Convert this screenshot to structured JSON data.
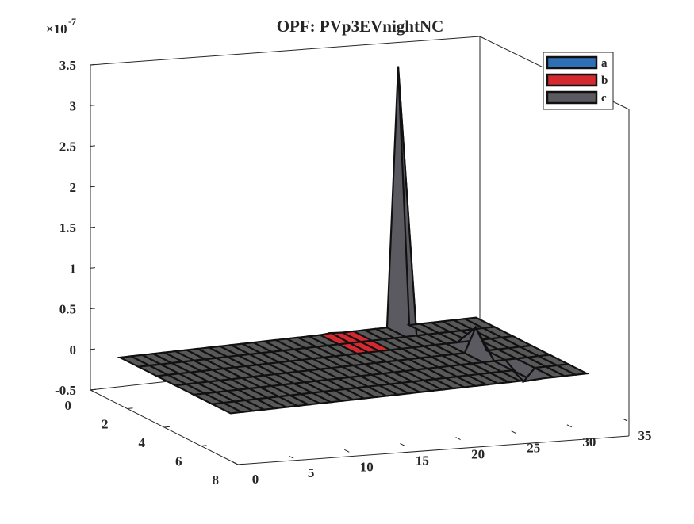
{
  "figure": {
    "title": "OPF: PVp3EVnightNC",
    "exponent_base": "×10",
    "exponent_power": "-7"
  },
  "legend": {
    "placement": "top-right",
    "entries": [
      {
        "label": "a",
        "color": "#2f6fb5"
      },
      {
        "label": "b",
        "color": "#d42a2f"
      },
      {
        "label": "c",
        "color": "#5a5a60"
      }
    ]
  },
  "chart_data": {
    "type": "surface3d",
    "title": "OPF: PVp3EVnightNC",
    "x_axis": {
      "label": "",
      "range": [
        0,
        35
      ],
      "ticks": [
        "0",
        "5",
        "10",
        "15",
        "20",
        "25",
        "30",
        "35"
      ]
    },
    "y_axis": {
      "label": "",
      "range": [
        0,
        8
      ],
      "ticks": [
        "0",
        "2",
        "4",
        "6",
        "8"
      ]
    },
    "z_axis": {
      "label": "",
      "scale": "×10^-7",
      "range": [
        -0.5,
        3.5
      ],
      "ticks": [
        "-0.5",
        "0",
        "0.5",
        "1",
        "1.5",
        "2",
        "2.5",
        "3",
        "3.5"
      ]
    },
    "grid": false,
    "series": [
      {
        "name": "a",
        "color": "#2f6fb5",
        "description_values": "near zero everywhere"
      },
      {
        "name": "b",
        "color": "#d42a2f",
        "peaks": [
          {
            "x": 20,
            "y": 1,
            "z": 0.01
          }
        ]
      },
      {
        "name": "c",
        "color": "#5a5a60",
        "peaks": [
          {
            "x": 26,
            "y": 1,
            "z": 3.2
          },
          {
            "x": 28,
            "y": 4,
            "z": 0.3
          },
          {
            "x": 29,
            "y": 6,
            "z": -0.15
          }
        ]
      }
    ]
  }
}
